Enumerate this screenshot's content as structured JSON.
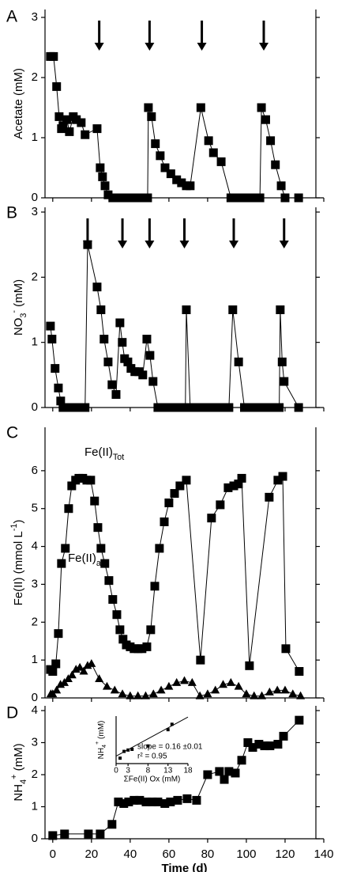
{
  "chart_data": [
    {
      "type": "line",
      "label": "A",
      "y_label": [
        {
          "text": "Acetate (mM)"
        }
      ],
      "xlim": [
        -4,
        140
      ],
      "xticks": [
        0,
        20,
        40,
        60,
        80,
        100,
        120,
        140
      ],
      "ylim": [
        0,
        3
      ],
      "yticks": [
        0,
        1,
        2,
        3
      ],
      "arrows": [
        24,
        50,
        77,
        109
      ],
      "series": [
        {
          "marker": "square",
          "color": "#000000",
          "x": [
            -1.2,
            0.4,
            2,
            3.3,
            4.5,
            5.3,
            7.3,
            8.6,
            10.6,
            12.2,
            14.7,
            16.7,
            22.9,
            24.5,
            25.7,
            27,
            28.6,
            31,
            34,
            37,
            40,
            43,
            46,
            49,
            49.4,
            51,
            53,
            55.5,
            58,
            61,
            64,
            66.5,
            69,
            71,
            76.5,
            80.5,
            83,
            87,
            92,
            95,
            98,
            101,
            104,
            107,
            107.8,
            110,
            112.5,
            115,
            118,
            120,
            127
          ],
          "values": [
            2.35,
            2.35,
            1.85,
            1.35,
            1.15,
            1.2,
            1.3,
            1.1,
            1.35,
            1.3,
            1.25,
            1.05,
            1.15,
            0.5,
            0.35,
            0.2,
            0.05,
            0,
            0,
            0,
            0,
            0,
            0,
            0,
            1.5,
            1.35,
            0.9,
            0.7,
            0.5,
            0.4,
            0.3,
            0.25,
            0.2,
            0.2,
            1.5,
            0.95,
            0.75,
            0.6,
            0,
            0,
            0,
            0,
            0,
            0,
            1.5,
            1.3,
            0.95,
            0.55,
            0.2,
            0,
            0
          ]
        }
      ]
    },
    {
      "type": "line",
      "label": "B",
      "y_label": [
        {
          "text": "NO"
        },
        {
          "sub": "3"
        },
        {
          "sup": "-"
        },
        {
          "text": " (mM)"
        }
      ],
      "xlim": [
        -4,
        140
      ],
      "xticks": [
        0,
        20,
        40,
        60,
        80,
        100,
        120,
        140
      ],
      "ylim": [
        0,
        3
      ],
      "yticks": [
        0,
        1,
        2,
        3
      ],
      "arrows": [
        18,
        36,
        50,
        68,
        93.5,
        119.5
      ],
      "series": [
        {
          "marker": "square",
          "color": "#000000",
          "x": [
            -1.2,
            -0.4,
            1.2,
            2.9,
            4.1,
            5.3,
            7,
            8.6,
            10.2,
            11.8,
            13.5,
            15,
            16.7,
            18,
            22.9,
            24.9,
            26.5,
            28.6,
            30.6,
            32.7,
            34.7,
            35.9,
            37.1,
            38.8,
            40.4,
            42.4,
            44.5,
            46.5,
            48.6,
            50.2,
            51.8,
            54.3,
            56,
            58,
            60,
            62,
            64,
            66,
            68.5,
            69,
            71,
            73.5,
            76,
            78.5,
            81,
            83.5,
            86,
            88.5,
            91,
            93,
            96,
            99,
            101.5,
            104,
            106.5,
            109,
            111.5,
            114,
            117,
            117.5,
            118.5,
            119.5,
            127
          ],
          "values": [
            1.25,
            1.05,
            0.6,
            0.3,
            0.1,
            0,
            0,
            0,
            0,
            0,
            0,
            0,
            0,
            2.5,
            1.85,
            1.5,
            1.05,
            0.7,
            0.35,
            0.2,
            1.3,
            1.0,
            0.75,
            0.7,
            0.6,
            0.55,
            0.55,
            0.5,
            1.05,
            0.8,
            0.4,
            0,
            0,
            0,
            0,
            0,
            0,
            0,
            0,
            1.5,
            0,
            0,
            0,
            0,
            0,
            0,
            0,
            0,
            0,
            1.5,
            0.7,
            0,
            0,
            0,
            0,
            0,
            0,
            0,
            0,
            1.5,
            0.7,
            0.4,
            0
          ]
        }
      ]
    },
    {
      "type": "line",
      "label": "C",
      "y_label": [
        {
          "text": "Fe(II) (mmol L"
        },
        {
          "sup": "-1"
        },
        {
          "text": ")"
        }
      ],
      "xlim": [
        -4,
        140
      ],
      "xticks": [
        0,
        20,
        40,
        60,
        80,
        100,
        120,
        140
      ],
      "ylim": [
        0,
        7
      ],
      "yticks": [
        0,
        1,
        2,
        3,
        4,
        5,
        6
      ],
      "series_labels": [
        [
          {
            "text": "Fe(II)"
          },
          {
            "sub": "Tot"
          }
        ],
        [
          {
            "text": "Fe(II)"
          },
          {
            "sub": "aq"
          }
        ]
      ],
      "series": [
        {
          "marker": "square",
          "color": "#000000",
          "x": [
            -1.2,
            0,
            1.6,
            2.9,
            4.5,
            6.5,
            8.2,
            9.8,
            11.8,
            13.5,
            15.5,
            17.6,
            19.6,
            21.6,
            23.3,
            24.9,
            26.9,
            29,
            31,
            33.1,
            34.7,
            36.3,
            38,
            40,
            42,
            44.1,
            46.1,
            48.6,
            50.6,
            52.7,
            55.1,
            57.6,
            60,
            62.9,
            65.7,
            69,
            76.3,
            82,
            86.5,
            90.6,
            93.5,
            95.9,
            97.6,
            101.6,
            111.8,
            116.3,
            118.8,
            120.4,
            127.3
          ],
          "values": [
            0.75,
            0.7,
            0.9,
            1.7,
            3.55,
            3.95,
            5.0,
            5.6,
            5.75,
            5.8,
            5.8,
            5.75,
            5.75,
            5.2,
            4.5,
            3.95,
            3.55,
            3.1,
            2.6,
            2.2,
            1.8,
            1.55,
            1.4,
            1.35,
            1.3,
            1.3,
            1.3,
            1.35,
            1.8,
            2.95,
            3.95,
            4.65,
            5.15,
            5.4,
            5.6,
            5.75,
            1.0,
            4.75,
            5.1,
            5.55,
            5.6,
            5.65,
            5.8,
            0.85,
            5.3,
            5.75,
            5.85,
            1.3,
            0.7
          ]
        },
        {
          "marker": "triangle",
          "color": "#000000",
          "x": [
            -1,
            0,
            2,
            4,
            6,
            8,
            10,
            12,
            14,
            16,
            18,
            20,
            24,
            28,
            32,
            36,
            40,
            44,
            48,
            52,
            56,
            60,
            64,
            68,
            72,
            76,
            80,
            84,
            88,
            92,
            96,
            100,
            104,
            108,
            112,
            116,
            120,
            124,
            128
          ],
          "values": [
            0.1,
            0.1,
            0.2,
            0.35,
            0.4,
            0.5,
            0.6,
            0.75,
            0.8,
            0.7,
            0.85,
            0.9,
            0.5,
            0.3,
            0.2,
            0.1,
            0.05,
            0.05,
            0.05,
            0.1,
            0.2,
            0.3,
            0.4,
            0.45,
            0.4,
            0.05,
            0.1,
            0.2,
            0.35,
            0.4,
            0.3,
            0.1,
            0.05,
            0.05,
            0.15,
            0.2,
            0.2,
            0.1,
            0.05
          ]
        }
      ]
    },
    {
      "type": "line",
      "label": "D",
      "y_label": [
        {
          "text": "NH"
        },
        {
          "sub": "4"
        },
        {
          "sup": "+"
        },
        {
          "text": " (mM)"
        }
      ],
      "x_label": "Time (d)",
      "xlim": [
        -4,
        140
      ],
      "xticks": [
        0,
        20,
        40,
        60,
        80,
        100,
        120,
        140
      ],
      "ylim": [
        0,
        4
      ],
      "yticks": [
        0,
        1,
        2,
        3,
        4
      ],
      "series": [
        {
          "marker": "square",
          "color": "#000000",
          "x": [
            0,
            6.1,
            18.4,
            24.5,
            30.6,
            33.9,
            36.7,
            39.2,
            42,
            44.9,
            48.2,
            51.4,
            54.3,
            57.9,
            60.8,
            64.5,
            69.4,
            74.3,
            80,
            86.1,
            88.6,
            91,
            94.3,
            97.6,
            100.8,
            103.3,
            106.5,
            109.4,
            112.2,
            116.3,
            119.2,
            127.3
          ],
          "values": [
            0.1,
            0.15,
            0.15,
            0.15,
            0.45,
            1.15,
            1.1,
            1.15,
            1.2,
            1.2,
            1.15,
            1.15,
            1.15,
            1.1,
            1.15,
            1.2,
            1.25,
            1.2,
            2.0,
            2.1,
            1.85,
            2.1,
            2.05,
            2.45,
            3.0,
            2.85,
            2.95,
            2.9,
            2.9,
            2.95,
            3.2,
            3.7
          ]
        }
      ]
    },
    {
      "type": "scatter",
      "inset": true,
      "y_label": [
        {
          "text": "NH"
        },
        {
          "sub": "4"
        },
        {
          "sup": "+"
        },
        {
          "text": " (mM)"
        }
      ],
      "x_label": "ΣFe(II) Ox (mM)",
      "xlim": [
        0,
        18
      ],
      "xticks": [
        0,
        3,
        8,
        13,
        18
      ],
      "ylim": [
        0,
        3.5
      ],
      "annotations": [
        "slope = 0.16 ±0.01",
        "r² = 0.95"
      ],
      "fit": {
        "x": [
          0,
          18
        ],
        "values": [
          0.55,
          3.43
        ]
      },
      "series": [
        {
          "marker": "square",
          "color": "#000000",
          "x": [
            1,
            2,
            3,
            4,
            8,
            13,
            14
          ],
          "values": [
            0.4,
            0.9,
            1.0,
            1.05,
            1.3,
            2.5,
            2.9
          ]
        }
      ]
    }
  ]
}
